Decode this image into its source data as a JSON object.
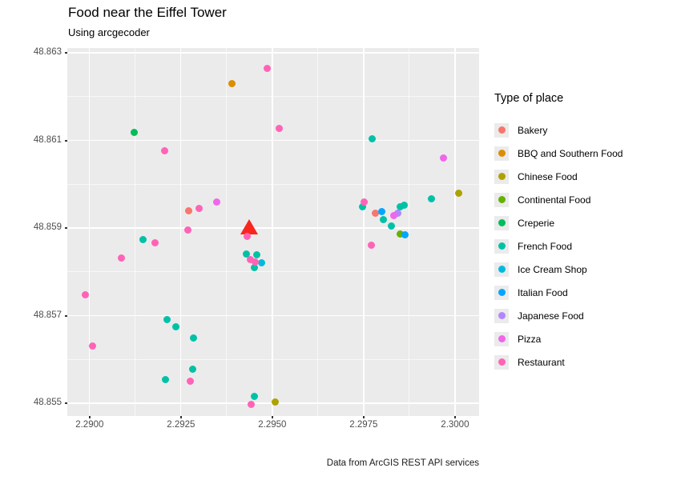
{
  "header": {
    "title": "Food near the Eiffel Tower",
    "subtitle": "Using arcgecoder",
    "caption": "Data from ArcGIS REST API services"
  },
  "legend": {
    "title": "Type of place"
  },
  "chart_data": {
    "type": "scatter",
    "title": "Food near the Eiffel Tower",
    "subtitle": "Using arcgecoder",
    "caption": "Data from ArcGIS REST API services",
    "xlabel": "",
    "ylabel": "",
    "legend_title": "Type of place",
    "legend_position": "right",
    "grid": true,
    "panel_background": "#EBEBEB",
    "x_range": [
      2.28939,
      2.30066
    ],
    "y_range": [
      48.854708,
      48.86311
    ],
    "x_ticks": [
      2.29,
      2.2925,
      2.295,
      2.2975,
      2.3
    ],
    "y_ticks": [
      48.855,
      48.857,
      48.859,
      48.861,
      48.863
    ],
    "x_minor": [
      2.29125,
      2.29375,
      2.29625,
      2.29875
    ],
    "y_minor": [
      48.856,
      48.858,
      48.86,
      48.862
    ],
    "marker": {
      "name": "eiffel-tower",
      "shape": "triangle-up",
      "color": "#F8261D",
      "lon": 2.29436,
      "lat": 48.85901
    },
    "series": [
      {
        "name": "Bakery",
        "color": "#F8766D",
        "points": [
          [
            2.29272,
            48.8594
          ],
          [
            2.29781,
            48.85933
          ]
        ]
      },
      {
        "name": "BBQ and Southern Food",
        "color": "#DB8E00",
        "points": [
          [
            2.2939,
            48.86229
          ]
        ]
      },
      {
        "name": "Chinese Food",
        "color": "#AEA200",
        "points": [
          [
            2.30009,
            48.8598
          ],
          [
            2.29509,
            48.85502
          ]
        ]
      },
      {
        "name": "Continental Food",
        "color": "#64B200",
        "points": [
          [
            2.29851,
            48.85887
          ]
        ]
      },
      {
        "name": "Creperie",
        "color": "#00BD5C",
        "points": [
          [
            2.29123,
            48.86119
          ]
        ]
      },
      {
        "name": "French Food",
        "color": "#00C1A7",
        "points": [
          [
            2.29774,
            48.86103
          ],
          [
            2.29936,
            48.85966
          ],
          [
            2.29748,
            48.85949
          ],
          [
            2.29805,
            48.8592
          ],
          [
            2.29851,
            48.85949
          ],
          [
            2.29862,
            48.85953
          ],
          [
            2.29827,
            48.85905
          ],
          [
            2.2943,
            48.8584
          ],
          [
            2.29458,
            48.85838
          ],
          [
            2.2945,
            48.85809
          ],
          [
            2.29147,
            48.85873
          ],
          [
            2.29213,
            48.8569
          ],
          [
            2.29237,
            48.85675
          ],
          [
            2.29285,
            48.85648
          ],
          [
            2.29283,
            48.85577
          ],
          [
            2.29208,
            48.85553
          ],
          [
            2.29452,
            48.85515
          ]
        ]
      },
      {
        "name": "Ice Cream Shop",
        "color": "#00BADE",
        "points": [
          [
            2.29471,
            48.85821
          ]
        ]
      },
      {
        "name": "Italian Food",
        "color": "#00A6FF",
        "points": [
          [
            2.298,
            48.85938
          ],
          [
            2.29864,
            48.85884
          ]
        ]
      },
      {
        "name": "Japanese Food",
        "color": "#B385FF",
        "points": [
          [
            2.29844,
            48.85933
          ]
        ]
      },
      {
        "name": "Pizza",
        "color": "#EF67EB",
        "points": [
          [
            2.29349,
            48.8596
          ],
          [
            2.29969,
            48.86059
          ],
          [
            2.29833,
            48.85929
          ]
        ]
      },
      {
        "name": "Restaurant",
        "color": "#FF63B6",
        "points": [
          [
            2.29485,
            48.86265
          ],
          [
            2.29206,
            48.86077
          ],
          [
            2.293,
            48.85944
          ],
          [
            2.2927,
            48.85896
          ],
          [
            2.29518,
            48.86128
          ],
          [
            2.29752,
            48.8596
          ],
          [
            2.2977,
            48.8586
          ],
          [
            2.29432,
            48.8588
          ],
          [
            2.29441,
            48.85827
          ],
          [
            2.29454,
            48.85823
          ],
          [
            2.2918,
            48.85867
          ],
          [
            2.29088,
            48.85831
          ],
          [
            2.28989,
            48.85748
          ],
          [
            2.29009,
            48.8563
          ],
          [
            2.29276,
            48.85551
          ],
          [
            2.29443,
            48.85498
          ]
        ]
      }
    ]
  }
}
